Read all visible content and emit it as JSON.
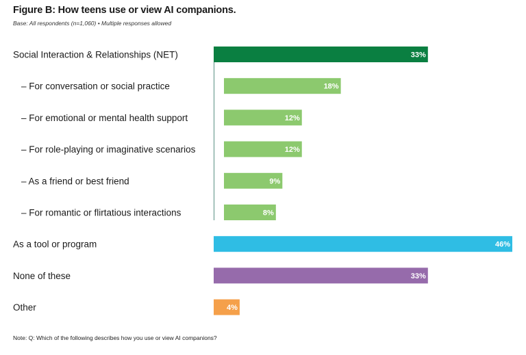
{
  "chart_data": {
    "type": "bar",
    "orientation": "horizontal",
    "title": "Figure B: How teens use or view AI companions.",
    "subtitle": "Base: All respondents (n=1,060) • Multiple responses allowed",
    "note": "Note: Q: Which of the following describes how you use or view AI companions?",
    "xlim": [
      0,
      46
    ],
    "grid": false,
    "categories": [
      "Social Interaction & Relationships (NET)",
      "– For conversation or social practice",
      "– For emotional or mental health support",
      "– For role-playing or imaginative scenarios",
      "– As a friend or best friend",
      "– For romantic or flirtatious interactions",
      "As a tool or program",
      "None of these",
      "Other"
    ],
    "values": [
      33,
      18,
      12,
      12,
      9,
      8,
      46,
      33,
      4
    ],
    "value_labels": [
      "33%",
      "18%",
      "12%",
      "12%",
      "9%",
      "8%",
      "46%",
      "33%",
      "4%"
    ],
    "indented": [
      false,
      true,
      true,
      true,
      true,
      true,
      false,
      false,
      false
    ],
    "colors": [
      "#0a7f41",
      "#8cc96e",
      "#8cc96e",
      "#8cc96e",
      "#8cc96e",
      "#8cc96e",
      "#2fbde4",
      "#966bab",
      "#f5a04a"
    ],
    "bracket_color": "#6f9e93"
  }
}
